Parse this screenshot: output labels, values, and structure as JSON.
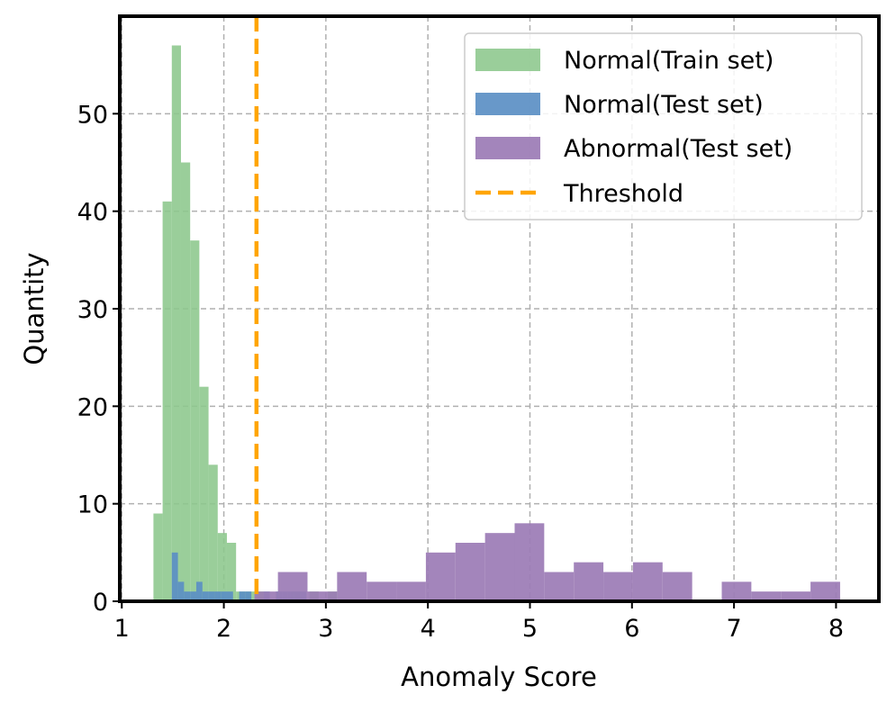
{
  "chart_data": {
    "type": "histogram",
    "xlabel": "Anomaly Score",
    "ylabel": "Quantity",
    "xlim": [
      0.98,
      8.42
    ],
    "ylim": [
      0,
      60
    ],
    "xticks": [
      1,
      2,
      3,
      4,
      5,
      6,
      7,
      8
    ],
    "yticks": [
      0,
      10,
      20,
      30,
      40,
      50
    ],
    "grid": true,
    "legend_position": "top-right",
    "threshold": {
      "name": "Threshold",
      "x": 2.32,
      "color": "#ffa500",
      "style": "dashed"
    },
    "series": [
      {
        "name": "Normal(Train set)",
        "color": "#8cc78c",
        "opacity": 0.88,
        "bins": [
          [
            1.31,
            1.4,
            9
          ],
          [
            1.4,
            1.49,
            41
          ],
          [
            1.49,
            1.58,
            57
          ],
          [
            1.58,
            1.67,
            45
          ],
          [
            1.67,
            1.76,
            37
          ],
          [
            1.76,
            1.85,
            22
          ],
          [
            1.85,
            1.94,
            14
          ],
          [
            1.94,
            2.03,
            7
          ],
          [
            2.03,
            2.12,
            6
          ],
          [
            2.12,
            2.21,
            1
          ],
          [
            2.21,
            2.3,
            1
          ],
          [
            2.3,
            2.39,
            1
          ],
          [
            2.66,
            2.75,
            1
          ],
          [
            2.84,
            2.93,
            1
          ],
          [
            3.02,
            3.11,
            1
          ]
        ]
      },
      {
        "name": "Normal(Test set)",
        "color": "#5b8fc4",
        "opacity": 0.92,
        "bins": [
          [
            1.49,
            1.55,
            5
          ],
          [
            1.55,
            1.61,
            2
          ],
          [
            1.61,
            1.67,
            1
          ],
          [
            1.67,
            1.73,
            1
          ],
          [
            1.73,
            1.79,
            2
          ],
          [
            1.79,
            1.85,
            1
          ],
          [
            1.85,
            1.91,
            1
          ],
          [
            1.91,
            1.97,
            1
          ],
          [
            1.97,
            2.03,
            1
          ],
          [
            2.03,
            2.09,
            1
          ],
          [
            2.15,
            2.21,
            1
          ],
          [
            2.21,
            2.27,
            1
          ],
          [
            2.39,
            2.45,
            1
          ],
          [
            2.51,
            2.57,
            1
          ],
          [
            2.57,
            2.63,
            1
          ],
          [
            2.63,
            2.69,
            1
          ],
          [
            2.69,
            2.75,
            1
          ],
          [
            2.75,
            2.81,
            1
          ]
        ]
      },
      {
        "name": "Abnormal(Test set)",
        "color": "#9b7bb5",
        "opacity": 0.92,
        "bins": [
          [
            2.3,
            2.53,
            1
          ],
          [
            2.53,
            2.82,
            3
          ],
          [
            2.82,
            3.11,
            1
          ],
          [
            3.11,
            3.4,
            3
          ],
          [
            3.4,
            3.69,
            2
          ],
          [
            3.69,
            3.98,
            2
          ],
          [
            3.98,
            4.27,
            5
          ],
          [
            4.27,
            4.56,
            6
          ],
          [
            4.56,
            4.85,
            7
          ],
          [
            4.85,
            5.14,
            8
          ],
          [
            5.14,
            5.43,
            3
          ],
          [
            5.43,
            5.72,
            4
          ],
          [
            5.72,
            6.01,
            3
          ],
          [
            6.01,
            6.3,
            4
          ],
          [
            6.3,
            6.59,
            3
          ],
          [
            6.88,
            7.17,
            2
          ],
          [
            7.17,
            7.46,
            1
          ],
          [
            7.46,
            7.75,
            1
          ],
          [
            7.75,
            8.04,
            2
          ]
        ]
      }
    ]
  }
}
